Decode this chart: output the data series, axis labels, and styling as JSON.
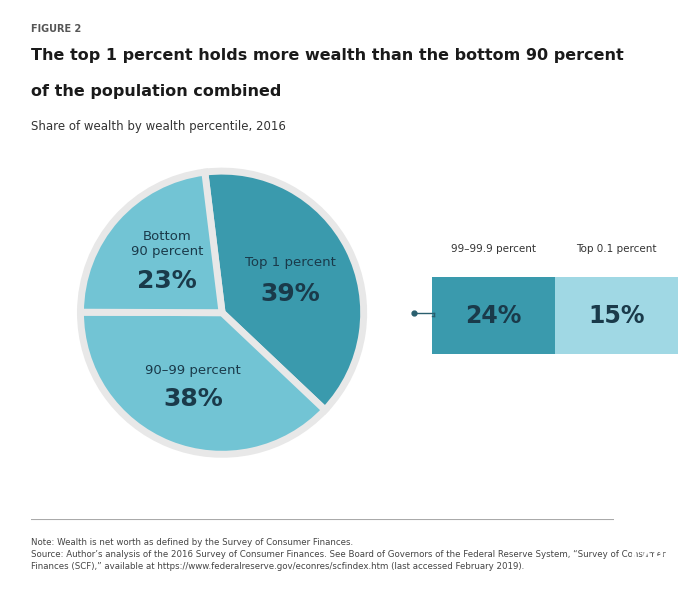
{
  "figure_label": "FIGURE 2",
  "title_line1": "The top 1 percent holds more wealth than the bottom 90 percent",
  "title_line2": "of the population combined",
  "subtitle": "Share of wealth by wealth percentile, 2016",
  "slices": [
    {
      "label": "Top 1 percent",
      "value": 39,
      "color": "#3a9aad",
      "label_color": "#1a3a4a",
      "pct": "39%"
    },
    {
      "label": "90–99 percent",
      "value": 38,
      "color": "#72c4d4",
      "label_color": "#1a3a4a",
      "pct": "38%"
    },
    {
      "label": "Bottom\n90 percent",
      "value": 23,
      "color": "#72c4d4",
      "label_color": "#1a3a4a",
      "pct": "23%"
    }
  ],
  "startangle": 97,
  "inset_labels": [
    "99–99.9 percent",
    "Top 0.1 percent"
  ],
  "inset_pcts": [
    "24%",
    "15%"
  ],
  "inset_colors": [
    "#3a9aad",
    "#a0d8e4"
  ],
  "inset_pct_colors": [
    "#1a3a4a",
    "#1a3a4a"
  ],
  "note_text": "Note: Wealth is net worth as defined by the Survey of Consumer Finances.\nSource: Author’s analysis of the 2016 Survey of Consumer Finances. See Board of Governors of the Federal Reserve System, “Survey of Consumer\nFinances (SCF),” available at https://www.federalreserve.gov/econres/scfindex.htm (last accessed February 2019).",
  "cap_color": "#1a3a5c",
  "top_bar_color": "#999999",
  "bg_color": "#ffffff",
  "callout_color": "#2a5f6e",
  "edge_color": "#e8e8e8"
}
